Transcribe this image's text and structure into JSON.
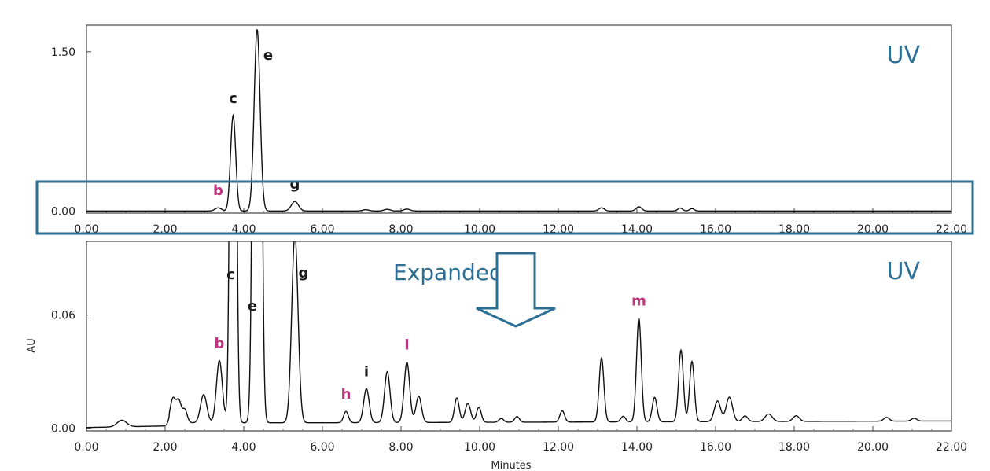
{
  "chart_data": [
    {
      "type": "line",
      "panel": "top",
      "xlim": [
        0,
        22
      ],
      "ylim": [
        -0.02,
        1.75
      ],
      "x_ticks": [
        "0.00",
        "2.00",
        "4.00",
        "6.00",
        "8.00",
        "10.00",
        "12.00",
        "14.00",
        "16.00",
        "18.00",
        "20.00",
        "22.00"
      ],
      "y_ticks": [
        {
          "value": 1.5,
          "label": "1.50"
        },
        {
          "value": 0.0,
          "label": "0.00"
        }
      ],
      "corner_label": "UV",
      "baseline": 0.0,
      "peaks": [
        {
          "x": 3.35,
          "y": 0.03,
          "w": 0.08,
          "label": "b",
          "color": "#c0337f"
        },
        {
          "x": 3.73,
          "y": 0.9,
          "w": 0.065,
          "label": "c",
          "color": "#1a1a1a"
        },
        {
          "x": 4.34,
          "y": 1.71,
          "w": 0.075,
          "label": "e",
          "color": "#1a1a1a"
        },
        {
          "x": 5.3,
          "y": 0.09,
          "w": 0.09,
          "label": "g",
          "color": "#1a1a1a"
        },
        {
          "x": 7.1,
          "y": 0.012,
          "w": 0.08
        },
        {
          "x": 7.65,
          "y": 0.016,
          "w": 0.08
        },
        {
          "x": 8.15,
          "y": 0.018,
          "w": 0.08
        },
        {
          "x": 13.1,
          "y": 0.03,
          "w": 0.07
        },
        {
          "x": 14.05,
          "y": 0.04,
          "w": 0.07
        },
        {
          "x": 15.1,
          "y": 0.028,
          "w": 0.06
        },
        {
          "x": 15.4,
          "y": 0.022,
          "w": 0.06
        }
      ],
      "highlight_box": {
        "x_range": [
          -0.3,
          22.5
        ],
        "y_range": [
          -0.25,
          0.22
        ]
      }
    },
    {
      "type": "line",
      "panel": "bottom",
      "xlim": [
        0,
        22
      ],
      "ylim": [
        -0.0015,
        0.099
      ],
      "x_ticks": [
        "0.00",
        "2.00",
        "4.00",
        "6.00",
        "8.00",
        "10.00",
        "12.00",
        "14.00",
        "16.00",
        "18.00",
        "20.00",
        "22.00"
      ],
      "y_ticks": [
        {
          "value": 0.06,
          "label": "0.06"
        },
        {
          "value": 0.0,
          "label": "0.00"
        }
      ],
      "ylabel": "AU",
      "xlabel": "Minutes",
      "corner_label": "UV",
      "baseline": 0.0,
      "peaks": [
        {
          "x": 0.9,
          "y": 0.0035,
          "w": 0.12
        },
        {
          "x": 2.2,
          "y": 0.013,
          "w": 0.07
        },
        {
          "x": 2.35,
          "y": 0.011,
          "w": 0.06
        },
        {
          "x": 2.5,
          "y": 0.007,
          "w": 0.06
        },
        {
          "x": 2.98,
          "y": 0.015,
          "w": 0.08
        },
        {
          "x": 3.38,
          "y": 0.033,
          "w": 0.075,
          "label": "b",
          "color": "#c0337f"
        },
        {
          "x": 3.73,
          "y": 0.5,
          "w": 0.06,
          "label": "c",
          "color": "#1a1a1a"
        },
        {
          "x": 4.34,
          "y": 0.9,
          "w": 0.07,
          "label": "e",
          "color": "#1a1a1a"
        },
        {
          "x": 5.3,
          "y": 0.1,
          "w": 0.08,
          "label": "g",
          "color": "#1a1a1a"
        },
        {
          "x": 6.6,
          "y": 0.006,
          "w": 0.06,
          "label": "h",
          "color": "#c0337f"
        },
        {
          "x": 7.12,
          "y": 0.018,
          "w": 0.07,
          "label": "i",
          "color": "#1a1a1a"
        },
        {
          "x": 7.65,
          "y": 0.027,
          "w": 0.07
        },
        {
          "x": 8.15,
          "y": 0.032,
          "w": 0.07,
          "label": "l",
          "color": "#c0337f"
        },
        {
          "x": 8.45,
          "y": 0.014,
          "w": 0.07
        },
        {
          "x": 9.42,
          "y": 0.013,
          "w": 0.06
        },
        {
          "x": 9.7,
          "y": 0.01,
          "w": 0.07
        },
        {
          "x": 9.98,
          "y": 0.008,
          "w": 0.06
        },
        {
          "x": 10.55,
          "y": 0.002,
          "w": 0.06
        },
        {
          "x": 10.95,
          "y": 0.003,
          "w": 0.06
        },
        {
          "x": 12.1,
          "y": 0.006,
          "w": 0.06
        },
        {
          "x": 13.1,
          "y": 0.034,
          "w": 0.06
        },
        {
          "x": 13.65,
          "y": 0.003,
          "w": 0.06
        },
        {
          "x": 14.05,
          "y": 0.055,
          "w": 0.06,
          "label": "m",
          "color": "#c0337f"
        },
        {
          "x": 14.45,
          "y": 0.013,
          "w": 0.06
        },
        {
          "x": 15.12,
          "y": 0.038,
          "w": 0.06
        },
        {
          "x": 15.4,
          "y": 0.032,
          "w": 0.06
        },
        {
          "x": 16.05,
          "y": 0.011,
          "w": 0.08
        },
        {
          "x": 16.35,
          "y": 0.013,
          "w": 0.08
        },
        {
          "x": 16.75,
          "y": 0.003,
          "w": 0.07
        },
        {
          "x": 17.35,
          "y": 0.004,
          "w": 0.09
        },
        {
          "x": 18.05,
          "y": 0.003,
          "w": 0.08
        },
        {
          "x": 20.35,
          "y": 0.002,
          "w": 0.07
        },
        {
          "x": 21.05,
          "y": 0.0015,
          "w": 0.07
        }
      ]
    }
  ],
  "annotation": {
    "label": "Expanded",
    "color": "#2d6f94"
  }
}
